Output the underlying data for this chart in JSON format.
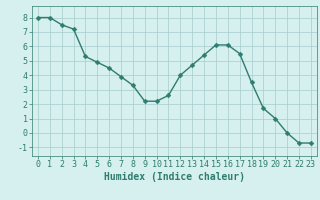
{
  "x": [
    0,
    1,
    2,
    3,
    4,
    5,
    6,
    7,
    8,
    9,
    10,
    11,
    12,
    13,
    14,
    15,
    16,
    17,
    18,
    19,
    20,
    21,
    22,
    23
  ],
  "y": [
    8,
    8,
    7.5,
    7.2,
    5.3,
    4.9,
    4.5,
    3.9,
    3.3,
    2.2,
    2.2,
    2.6,
    4.0,
    4.7,
    5.4,
    6.1,
    6.1,
    5.5,
    3.5,
    1.7,
    1.0,
    0.0,
    -0.7,
    -0.7
  ],
  "xlabel": "Humidex (Indice chaleur)",
  "ylabel": "",
  "xlim": [
    -0.5,
    23.5
  ],
  "ylim": [
    -1.6,
    8.8
  ],
  "yticks": [
    -1,
    0,
    1,
    2,
    3,
    4,
    5,
    6,
    7,
    8
  ],
  "xticks": [
    0,
    1,
    2,
    3,
    4,
    5,
    6,
    7,
    8,
    9,
    10,
    11,
    12,
    13,
    14,
    15,
    16,
    17,
    18,
    19,
    20,
    21,
    22,
    23
  ],
  "line_color": "#2e7d6e",
  "marker_color": "#2e7d6e",
  "bg_color": "#d6efef",
  "grid_color": "#a8cccc",
  "axis_color": "#2e7d6e",
  "tick_color": "#2e7d6e",
  "label_color": "#2e7d6e",
  "font_size": 6,
  "label_font_size": 7,
  "marker_size": 2.5,
  "line_width": 1.0
}
